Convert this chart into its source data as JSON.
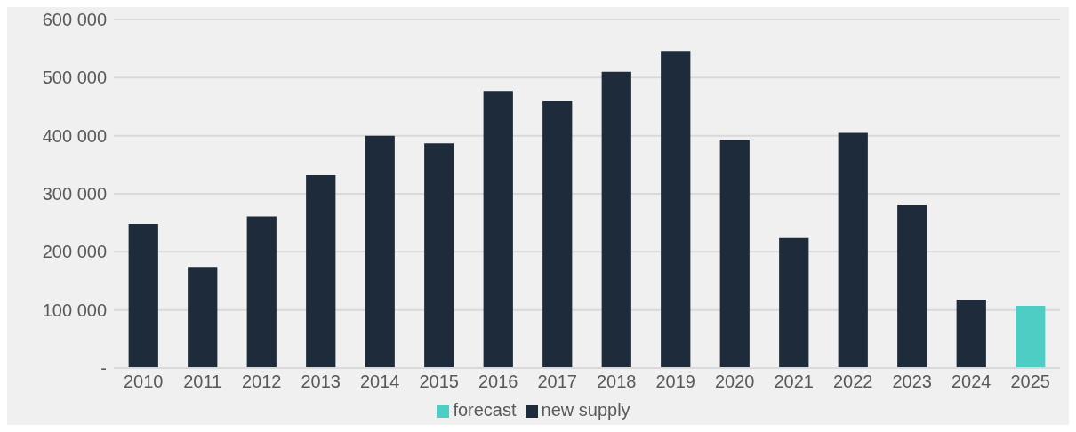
{
  "chart_data": {
    "type": "bar",
    "stacked": true,
    "categories": [
      "2010",
      "2011",
      "2012",
      "2013",
      "2014",
      "2015",
      "2016",
      "2017",
      "2018",
      "2019",
      "2020",
      "2021",
      "2022",
      "2023",
      "2024",
      "2025"
    ],
    "series": [
      {
        "name": "new supply",
        "color": "#1e2b3a",
        "values": [
          248000,
          174000,
          261000,
          332000,
          400000,
          387000,
          477000,
          459000,
          510000,
          546000,
          393000,
          224000,
          405000,
          280000,
          118000,
          null
        ]
      },
      {
        "name": "forecast",
        "color": "#4ecdc4",
        "values": [
          null,
          null,
          null,
          null,
          null,
          null,
          null,
          null,
          null,
          null,
          null,
          null,
          null,
          null,
          null,
          107000
        ]
      }
    ],
    "ylim": [
      0,
      600000
    ],
    "yticks": [
      {
        "value": 0,
        "label": "-"
      },
      {
        "value": 100000,
        "label": "100 000"
      },
      {
        "value": 200000,
        "label": "200 000"
      },
      {
        "value": 300000,
        "label": "300 000"
      },
      {
        "value": 400000,
        "label": "400 000"
      },
      {
        "value": 500000,
        "label": "500 000"
      },
      {
        "value": 600000,
        "label": "600 000"
      }
    ],
    "grid": "y",
    "legend": "bottom"
  }
}
